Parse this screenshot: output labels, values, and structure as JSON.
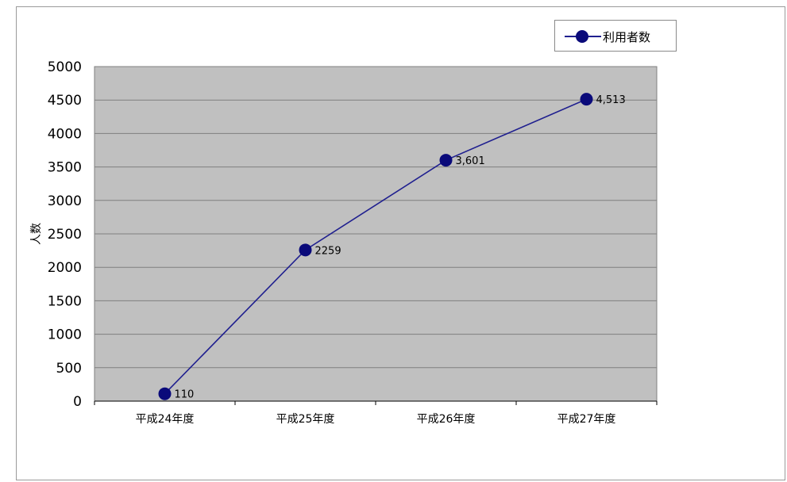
{
  "chart_data": {
    "type": "line",
    "categories": [
      "平成24年度",
      "平成25年度",
      "平成26年度",
      "平成27年度"
    ],
    "series": [
      {
        "name": "利用者数",
        "values": [
          110,
          2259,
          3601,
          4513
        ],
        "labels": [
          "110",
          "2259",
          "3,601",
          "4,513"
        ]
      }
    ],
    "ylabel": "人数",
    "ylim": [
      0,
      5000
    ],
    "yticks": [
      "0",
      "500",
      "1000",
      "1500",
      "2000",
      "2500",
      "3000",
      "3500",
      "4000",
      "4500",
      "5000"
    ],
    "grid": true,
    "legend": "top-right",
    "colors": {
      "line": "#1f1f8f",
      "marker": "#0a0a7a",
      "plot_bg": "#c0c0c0",
      "grid": "#7f7f7f"
    }
  }
}
